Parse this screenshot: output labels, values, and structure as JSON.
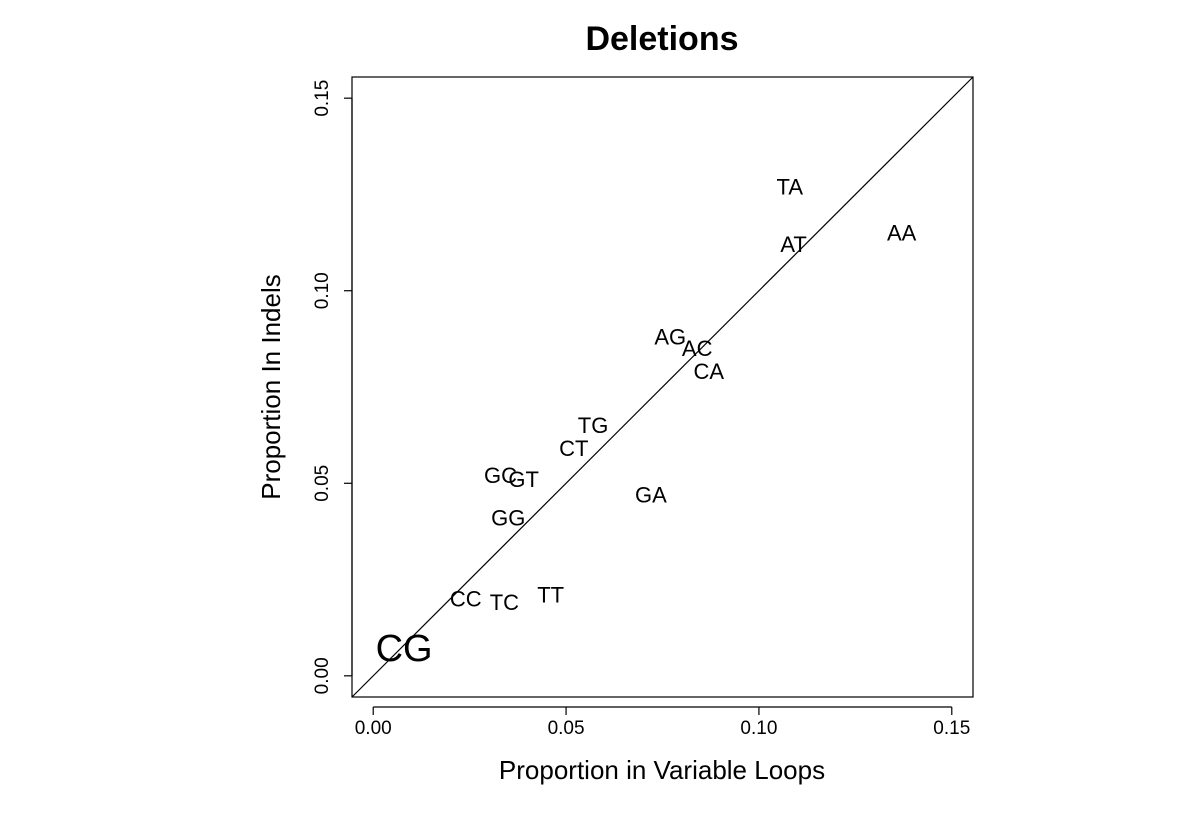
{
  "chart_data": {
    "type": "scatter",
    "title": "Deletions",
    "xlabel": "Proportion in Variable Loops",
    "ylabel": "Proportion In Indels",
    "xlim": [
      -0.0055,
      0.1555
    ],
    "ylim": [
      -0.0055,
      0.1555
    ],
    "xticks": [
      0.0,
      0.05,
      0.1,
      0.15
    ],
    "yticks": [
      0.0,
      0.05,
      0.1,
      0.15
    ],
    "xtick_labels": [
      "0.00",
      "0.05",
      "0.10",
      "0.15"
    ],
    "ytick_labels": [
      "0.00",
      "0.05",
      "0.10",
      "0.15"
    ],
    "reference_line": "y = x",
    "grid": false,
    "points": [
      {
        "label": "TA",
        "x": 0.108,
        "y": 0.127
      },
      {
        "label": "AT",
        "x": 0.109,
        "y": 0.112
      },
      {
        "label": "AA",
        "x": 0.137,
        "y": 0.115
      },
      {
        "label": "AG",
        "x": 0.077,
        "y": 0.088
      },
      {
        "label": "AC",
        "x": 0.084,
        "y": 0.085
      },
      {
        "label": "CA",
        "x": 0.087,
        "y": 0.079
      },
      {
        "label": "TG",
        "x": 0.057,
        "y": 0.065
      },
      {
        "label": "CT",
        "x": 0.052,
        "y": 0.059
      },
      {
        "label": "GC",
        "x": 0.033,
        "y": 0.052
      },
      {
        "label": "GT",
        "x": 0.039,
        "y": 0.051
      },
      {
        "label": "GA",
        "x": 0.072,
        "y": 0.047
      },
      {
        "label": "GG",
        "x": 0.035,
        "y": 0.041
      },
      {
        "label": "CC",
        "x": 0.024,
        "y": 0.02
      },
      {
        "label": "TC",
        "x": 0.034,
        "y": 0.019
      },
      {
        "label": "TT",
        "x": 0.046,
        "y": 0.021
      },
      {
        "label": "CG",
        "x": 0.008,
        "y": 0.007,
        "emphasized": true
      }
    ]
  }
}
